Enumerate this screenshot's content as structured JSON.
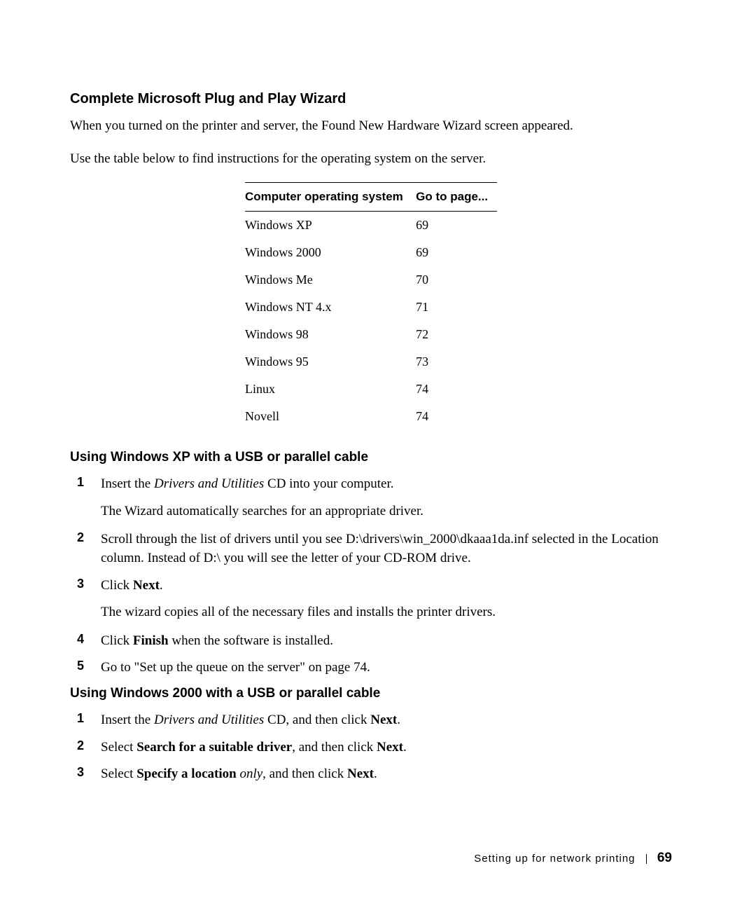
{
  "heading1": "Complete Microsoft Plug and Play Wizard",
  "para1": "When you turned on the printer and server, the Found New Hardware Wizard screen appeared.",
  "para2": "Use the table below to find instructions for the operating system on the server.",
  "table": {
    "col1_header": "Computer operating system",
    "col2_header": "Go to page...",
    "rows": [
      {
        "os": "Windows XP",
        "page": "69"
      },
      {
        "os": "Windows 2000",
        "page": "69"
      },
      {
        "os": "Windows Me",
        "page": "70"
      },
      {
        "os": "Windows NT 4.x",
        "page": "71"
      },
      {
        "os": "Windows 98",
        "page": "72"
      },
      {
        "os": "Windows 95",
        "page": "73"
      },
      {
        "os": "Linux",
        "page": "74"
      },
      {
        "os": "Novell",
        "page": "74"
      }
    ]
  },
  "sectionA": {
    "title": "Using Windows XP with a USB or parallel cable",
    "steps": {
      "s1_pre": "Insert the ",
      "s1_italic": "Drivers and Utilities",
      "s1_post": " CD into your computer.",
      "s1_sub": "The Wizard automatically searches for an appropriate driver.",
      "s2": "Scroll through the list of drivers until you see D:\\drivers\\win_2000\\dkaaa1da.inf selected in the Location column. Instead of D:\\ you will see the letter of your CD-ROM drive.",
      "s3_pre": "Click ",
      "s3_bold": "Next",
      "s3_post": ".",
      "s3_sub": "The wizard copies all of the necessary files and installs the printer drivers.",
      "s4_pre": "Click ",
      "s4_bold": "Finish",
      "s4_post": " when the software is installed.",
      "s5": "Go to \"Set up the queue on the server\" on page 74."
    }
  },
  "sectionB": {
    "title": "Using Windows 2000 with a USB or parallel cable",
    "steps": {
      "s1_pre": "Insert the ",
      "s1_italic": "Drivers and Utilities",
      "s1_post": " CD, and then click ",
      "s1_bold": "Next",
      "s1_end": ".",
      "s2_pre": "Select ",
      "s2_bold": "Search for a suitable driver",
      "s2_post": ", and then click ",
      "s2_bold2": "Next",
      "s2_end": ".",
      "s3_pre": "Select ",
      "s3_bold": "Specify a location",
      "s3_mid": " ",
      "s3_italic": "only",
      "s3_post": ", and then click ",
      "s3_bold2": "Next",
      "s3_end": "."
    }
  },
  "footer": {
    "section": "Setting up for network printing",
    "page": "69"
  }
}
